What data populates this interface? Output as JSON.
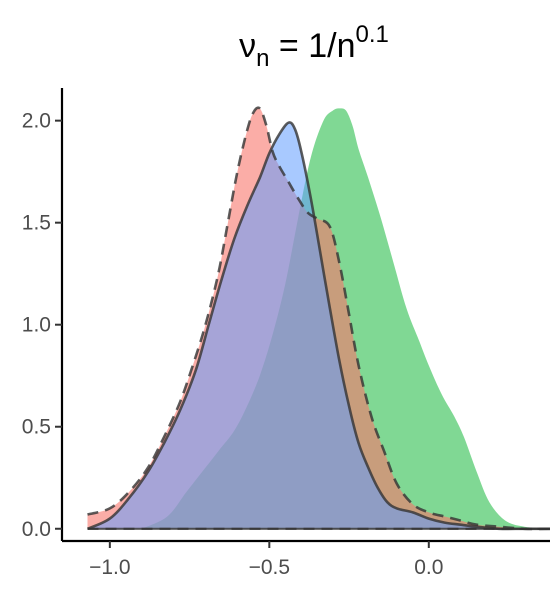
{
  "chart_data": {
    "type": "area",
    "title": {
      "main": "ν",
      "sub": "n",
      "mid": " = 1/n",
      "sup": "0.1"
    },
    "xlabel": "",
    "ylabel": "",
    "xlim": [
      -1.15,
      0.38
    ],
    "ylim": [
      -0.06,
      2.16
    ],
    "x_ticks": [
      {
        "value": -1.0,
        "label": "−1.0"
      },
      {
        "value": -0.5,
        "label": "−0.5"
      },
      {
        "value": 0.0,
        "label": "0.0"
      }
    ],
    "y_ticks": [
      {
        "value": 0.0,
        "label": "0.0"
      },
      {
        "value": 0.5,
        "label": "0.5"
      },
      {
        "value": 1.0,
        "label": "1.0"
      },
      {
        "value": 1.5,
        "label": "1.5"
      },
      {
        "value": 2.0,
        "label": "2.0"
      }
    ],
    "grid": false,
    "legend": "none",
    "series": [
      {
        "color": "#3cc35a",
        "opacity": 0.65,
        "outline": "none",
        "x": [
          -0.9,
          -0.82,
          -0.76,
          -0.71,
          -0.66,
          -0.61,
          -0.57,
          -0.53,
          -0.49,
          -0.45,
          -0.41,
          -0.37,
          -0.33,
          -0.3,
          -0.28,
          -0.26,
          -0.24,
          -0.22,
          -0.19,
          -0.15,
          -0.11,
          -0.07,
          -0.03,
          0.0,
          0.04,
          0.08,
          0.11,
          0.15,
          0.19,
          0.24,
          0.3,
          0.38
        ],
        "y": [
          0.0,
          0.06,
          0.18,
          0.28,
          0.38,
          0.48,
          0.6,
          0.75,
          0.95,
          1.2,
          1.52,
          1.82,
          2.0,
          2.05,
          2.06,
          2.05,
          1.98,
          1.86,
          1.72,
          1.52,
          1.3,
          1.08,
          0.92,
          0.8,
          0.66,
          0.55,
          0.45,
          0.28,
          0.13,
          0.04,
          0.01,
          0.0
        ]
      },
      {
        "color": "#f8766d",
        "opacity": 0.6,
        "outline": "dashed",
        "x": [
          -1.07,
          -1.0,
          -0.94,
          -0.88,
          -0.83,
          -0.78,
          -0.74,
          -0.7,
          -0.66,
          -0.63,
          -0.6,
          -0.57,
          -0.55,
          -0.53,
          -0.51,
          -0.49,
          -0.47,
          -0.44,
          -0.41,
          -0.38,
          -0.35,
          -0.31,
          -0.28,
          -0.25,
          -0.22,
          -0.18,
          -0.14,
          -0.1,
          -0.05,
          0.0,
          0.05,
          0.1,
          0.15,
          0.22,
          0.3,
          0.38
        ],
        "y": [
          0.07,
          0.1,
          0.18,
          0.3,
          0.45,
          0.62,
          0.8,
          1.0,
          1.25,
          1.5,
          1.75,
          1.95,
          2.04,
          2.06,
          1.98,
          1.85,
          1.78,
          1.7,
          1.62,
          1.55,
          1.52,
          1.48,
          1.3,
          1.05,
          0.8,
          0.55,
          0.38,
          0.22,
          0.12,
          0.08,
          0.06,
          0.04,
          0.02,
          0.01,
          0.0,
          0.0
        ]
      },
      {
        "color": "#619cff",
        "opacity": 0.55,
        "outline": "solid",
        "x": [
          -1.07,
          -1.0,
          -0.94,
          -0.88,
          -0.83,
          -0.78,
          -0.73,
          -0.69,
          -0.65,
          -0.61,
          -0.57,
          -0.53,
          -0.5,
          -0.47,
          -0.44,
          -0.42,
          -0.4,
          -0.37,
          -0.34,
          -0.31,
          -0.28,
          -0.25,
          -0.22,
          -0.19,
          -0.16,
          -0.13,
          -0.1,
          -0.05,
          0.0,
          0.05,
          0.1,
          0.15,
          0.22,
          0.3,
          0.38
        ],
        "y": [
          0.0,
          0.05,
          0.15,
          0.28,
          0.42,
          0.58,
          0.78,
          1.0,
          1.22,
          1.42,
          1.58,
          1.72,
          1.84,
          1.93,
          1.99,
          1.96,
          1.85,
          1.62,
          1.35,
          1.08,
          0.82,
          0.6,
          0.42,
          0.3,
          0.2,
          0.13,
          0.1,
          0.08,
          0.05,
          0.03,
          0.02,
          0.01,
          0.0,
          0.0,
          0.0
        ]
      }
    ]
  }
}
